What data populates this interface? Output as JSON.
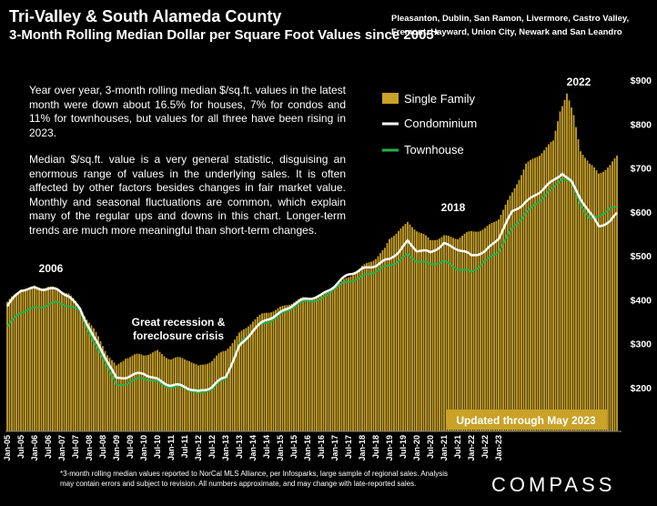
{
  "title": "Tri-Valley & South Alameda County",
  "subtitle": "3-Month Rolling Median Dollar per Square Foot Values since 2005*",
  "region_note": "Pleasanton, Dublin, San Ramon, Livermore, Castro Valley, Fremont, Hayward, Union City, Newark and San Leandro",
  "paragraphs": [
    "Year over year, 3-month rolling median $/sq.ft. values in the latest month were down about 16.5% for houses, 7% for condos and 11% for townhouses, but values for all three have been rising in 2023.",
    "Median $/sq.ft. value is a very general statistic, disguising an enormous range of values in the underlying sales. It is often affected by other factors besides changes in fair market value. Monthly and seasonal fluctuations are common, which explain many of the regular ups and downs in this chart. Longer-term trends are much more meaningful than short-term changes."
  ],
  "footnote": "*3-month rolling median values reported to NorCal MLS Alliance, per Infosparks, large sample of regional sales. Analysis may contain errors and subject to revision. All numbers approximate, and may change with late-reported sales.",
  "logo": "COMPASS",
  "colors": {
    "single_family": "#C9A227",
    "condominium": "#FFFFFF",
    "townhouse": "#22B14C",
    "background": "#000000"
  },
  "chart_data": {
    "type": "bar",
    "x_labels": [
      "Jan-05",
      "Jul-05",
      "Jan-06",
      "Jul-06",
      "Jan-07",
      "Jul-07",
      "Jan-08",
      "Jul-08",
      "Jan-09",
      "Jul-09",
      "Jan-10",
      "Jul-10",
      "Jan-11",
      "Jul-11",
      "Jan-12",
      "Jul-12",
      "Jan-13",
      "Jul-13",
      "Jan-14",
      "Jul-14",
      "Jan-15",
      "Jul-15",
      "Jan-16",
      "Jul-16",
      "Jan-17",
      "Jul-17",
      "Jan-18",
      "Jul-18",
      "Jan-19",
      "Jul-19",
      "Jan-20",
      "Jul-20",
      "Jan-21",
      "Jul-21",
      "Jan-22",
      "Jul-22",
      "Jan-23"
    ],
    "y_ticks": [
      "$200",
      "$300",
      "$400",
      "$500",
      "$600",
      "$700",
      "$800",
      "$900"
    ],
    "ylim": [
      100,
      900
    ],
    "legend": [
      "Single Family",
      "Condominium",
      "Townhouse"
    ],
    "legend_position": "top-center",
    "annotations": [
      "2006",
      "Great recession & foreclosure crisis",
      "2018",
      "2022",
      "Updated through May 2023"
    ],
    "series_anchors_note": "",
    "single_family_anchors": [
      [
        0,
        395
      ],
      [
        6,
        418
      ],
      [
        12,
        432
      ],
      [
        18,
        430
      ],
      [
        22,
        420
      ],
      [
        27,
        415
      ],
      [
        32,
        385
      ],
      [
        38,
        330
      ],
      [
        44,
        275
      ],
      [
        48,
        250
      ],
      [
        52,
        270
      ],
      [
        60,
        272
      ],
      [
        66,
        285
      ],
      [
        72,
        265
      ],
      [
        80,
        262
      ],
      [
        84,
        250
      ],
      [
        90,
        262
      ],
      [
        96,
        282
      ],
      [
        102,
        325
      ],
      [
        108,
        352
      ],
      [
        114,
        368
      ],
      [
        120,
        384
      ],
      [
        126,
        396
      ],
      [
        132,
        402
      ],
      [
        138,
        412
      ],
      [
        144,
        428
      ],
      [
        150,
        448
      ],
      [
        156,
        478
      ],
      [
        162,
        495
      ],
      [
        166,
        512
      ],
      [
        168,
        535
      ],
      [
        172,
        560
      ],
      [
        176,
        577
      ],
      [
        180,
        558
      ],
      [
        186,
        532
      ],
      [
        192,
        548
      ],
      [
        198,
        540
      ],
      [
        204,
        552
      ],
      [
        210,
        565
      ],
      [
        216,
        585
      ],
      [
        222,
        640
      ],
      [
        228,
        712
      ],
      [
        234,
        730
      ],
      [
        240,
        758
      ],
      [
        243,
        832
      ],
      [
        246,
        872
      ],
      [
        249,
        820
      ],
      [
        252,
        740
      ],
      [
        256,
        705
      ],
      [
        260,
        688
      ],
      [
        265,
        708
      ],
      [
        268,
        728
      ]
    ],
    "condominium_anchors": [
      [
        0,
        385
      ],
      [
        6,
        420
      ],
      [
        12,
        428
      ],
      [
        18,
        425
      ],
      [
        22,
        420
      ],
      [
        27,
        408
      ],
      [
        32,
        382
      ],
      [
        38,
        312
      ],
      [
        44,
        260
      ],
      [
        48,
        222
      ],
      [
        52,
        225
      ],
      [
        60,
        230
      ],
      [
        66,
        220
      ],
      [
        72,
        205
      ],
      [
        78,
        200
      ],
      [
        84,
        192
      ],
      [
        90,
        202
      ],
      [
        96,
        222
      ],
      [
        102,
        295
      ],
      [
        108,
        330
      ],
      [
        114,
        352
      ],
      [
        120,
        372
      ],
      [
        126,
        390
      ],
      [
        132,
        400
      ],
      [
        138,
        412
      ],
      [
        144,
        432
      ],
      [
        150,
        455
      ],
      [
        156,
        472
      ],
      [
        162,
        478
      ],
      [
        168,
        490
      ],
      [
        172,
        510
      ],
      [
        176,
        535
      ],
      [
        180,
        512
      ],
      [
        186,
        505
      ],
      [
        192,
        530
      ],
      [
        198,
        515
      ],
      [
        204,
        498
      ],
      [
        210,
        512
      ],
      [
        216,
        540
      ],
      [
        222,
        598
      ],
      [
        228,
        625
      ],
      [
        234,
        645
      ],
      [
        240,
        668
      ],
      [
        244,
        690
      ],
      [
        248,
        670
      ],
      [
        252,
        630
      ],
      [
        256,
        595
      ],
      [
        260,
        568
      ],
      [
        265,
        580
      ],
      [
        268,
        598
      ]
    ],
    "townhouse_anchors": [
      [
        0,
        338
      ],
      [
        6,
        370
      ],
      [
        12,
        383
      ],
      [
        18,
        388
      ],
      [
        22,
        392
      ],
      [
        27,
        385
      ],
      [
        32,
        378
      ],
      [
        38,
        300
      ],
      [
        44,
        250
      ],
      [
        48,
        205
      ],
      [
        52,
        210
      ],
      [
        60,
        220
      ],
      [
        66,
        215
      ],
      [
        72,
        200
      ],
      [
        78,
        198
      ],
      [
        84,
        188
      ],
      [
        90,
        198
      ],
      [
        96,
        218
      ],
      [
        102,
        300
      ],
      [
        108,
        332
      ],
      [
        114,
        345
      ],
      [
        120,
        368
      ],
      [
        126,
        385
      ],
      [
        132,
        395
      ],
      [
        138,
        402
      ],
      [
        144,
        428
      ],
      [
        150,
        438
      ],
      [
        156,
        455
      ],
      [
        162,
        465
      ],
      [
        168,
        475
      ],
      [
        172,
        490
      ],
      [
        176,
        505
      ],
      [
        180,
        488
      ],
      [
        186,
        478
      ],
      [
        192,
        490
      ],
      [
        198,
        470
      ],
      [
        204,
        460
      ],
      [
        210,
        490
      ],
      [
        216,
        510
      ],
      [
        222,
        560
      ],
      [
        228,
        600
      ],
      [
        234,
        625
      ],
      [
        240,
        652
      ],
      [
        244,
        680
      ],
      [
        248,
        668
      ],
      [
        252,
        618
      ],
      [
        256,
        580
      ],
      [
        260,
        590
      ],
      [
        265,
        610
      ],
      [
        268,
        612
      ]
    ]
  }
}
